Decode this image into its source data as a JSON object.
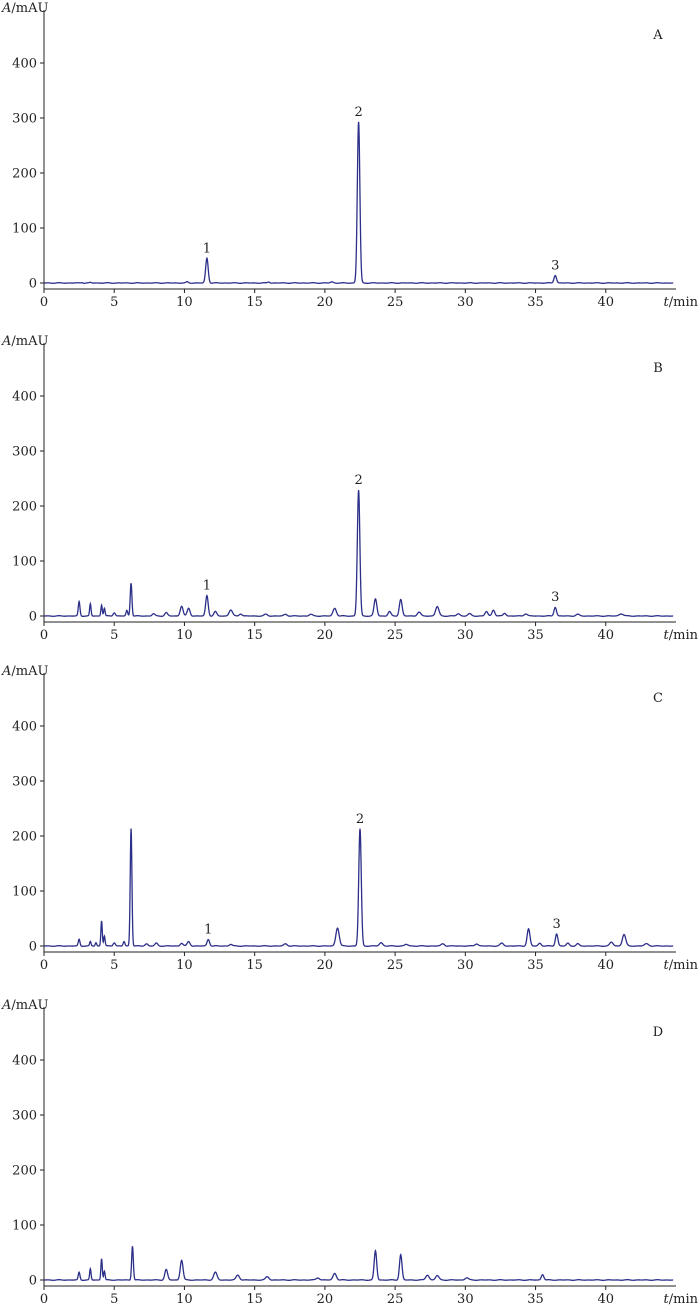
{
  "chart_data": [
    {
      "type": "line",
      "panel_label": "A",
      "ylabel_var": "A",
      "ylabel_unit": "/mAU",
      "xlabel_var": "t",
      "xlabel_unit": "/min",
      "xlim": [
        0,
        45
      ],
      "ylim": [
        -10,
        470
      ],
      "x_ticks": [
        0,
        5,
        10,
        15,
        20,
        25,
        30,
        35,
        40
      ],
      "y_ticks": [
        0,
        100,
        200,
        300,
        400
      ],
      "baseline": 0,
      "peaks": [
        {
          "x": 2.7,
          "y": 1,
          "w": 0.06
        },
        {
          "x": 3.3,
          "y": 1,
          "w": 0.06
        },
        {
          "x": 10.2,
          "y": 2,
          "w": 0.08
        },
        {
          "x": 11.6,
          "y": 45,
          "w": 0.09
        },
        {
          "x": 16.0,
          "y": 2,
          "w": 0.08
        },
        {
          "x": 20.5,
          "y": 2,
          "w": 0.1
        },
        {
          "x": 22.4,
          "y": 293,
          "w": 0.09
        },
        {
          "x": 36.4,
          "y": 14,
          "w": 0.09
        }
      ],
      "labeled_peaks": [
        {
          "label": "1",
          "x": 11.6,
          "y": 45
        },
        {
          "label": "2",
          "x": 22.4,
          "y": 293
        },
        {
          "label": "3",
          "x": 36.4,
          "y": 14
        }
      ]
    },
    {
      "type": "line",
      "panel_label": "B",
      "ylabel_var": "A",
      "ylabel_unit": "/mAU",
      "xlabel_var": "t",
      "xlabel_unit": "/min",
      "xlim": [
        0,
        45
      ],
      "ylim": [
        -10,
        470
      ],
      "x_ticks": [
        0,
        5,
        10,
        15,
        20,
        25,
        30,
        35,
        40
      ],
      "y_ticks": [
        0,
        100,
        200,
        300,
        400
      ],
      "baseline": 0,
      "peaks": [
        {
          "x": 2.5,
          "y": 26,
          "w": 0.06
        },
        {
          "x": 3.3,
          "y": 22,
          "w": 0.05
        },
        {
          "x": 4.1,
          "y": 20,
          "w": 0.05
        },
        {
          "x": 4.3,
          "y": 14,
          "w": 0.05
        },
        {
          "x": 5.0,
          "y": 6,
          "w": 0.08
        },
        {
          "x": 5.9,
          "y": 10,
          "w": 0.06
        },
        {
          "x": 6.2,
          "y": 60,
          "w": 0.06
        },
        {
          "x": 7.8,
          "y": 4,
          "w": 0.1
        },
        {
          "x": 8.7,
          "y": 6,
          "w": 0.1
        },
        {
          "x": 9.8,
          "y": 18,
          "w": 0.1
        },
        {
          "x": 10.3,
          "y": 14,
          "w": 0.1
        },
        {
          "x": 11.6,
          "y": 37,
          "w": 0.09
        },
        {
          "x": 12.2,
          "y": 8,
          "w": 0.1
        },
        {
          "x": 13.3,
          "y": 11,
          "w": 0.12
        },
        {
          "x": 14.0,
          "y": 4,
          "w": 0.1
        },
        {
          "x": 15.8,
          "y": 3,
          "w": 0.12
        },
        {
          "x": 17.2,
          "y": 3,
          "w": 0.12
        },
        {
          "x": 19.0,
          "y": 3,
          "w": 0.12
        },
        {
          "x": 20.7,
          "y": 14,
          "w": 0.12
        },
        {
          "x": 22.4,
          "y": 229,
          "w": 0.09
        },
        {
          "x": 23.6,
          "y": 31,
          "w": 0.1
        },
        {
          "x": 24.6,
          "y": 8,
          "w": 0.1
        },
        {
          "x": 25.4,
          "y": 30,
          "w": 0.1
        },
        {
          "x": 26.7,
          "y": 7,
          "w": 0.12
        },
        {
          "x": 28.0,
          "y": 17,
          "w": 0.12
        },
        {
          "x": 29.5,
          "y": 4,
          "w": 0.12
        },
        {
          "x": 30.3,
          "y": 4,
          "w": 0.12
        },
        {
          "x": 31.5,
          "y": 8,
          "w": 0.1
        },
        {
          "x": 32.0,
          "y": 11,
          "w": 0.1
        },
        {
          "x": 32.8,
          "y": 5,
          "w": 0.1
        },
        {
          "x": 34.3,
          "y": 4,
          "w": 0.12
        },
        {
          "x": 36.4,
          "y": 16,
          "w": 0.09
        },
        {
          "x": 38.0,
          "y": 3,
          "w": 0.12
        },
        {
          "x": 41.1,
          "y": 4,
          "w": 0.15
        }
      ],
      "labeled_peaks": [
        {
          "label": "1",
          "x": 11.6,
          "y": 37
        },
        {
          "label": "2",
          "x": 22.4,
          "y": 229
        },
        {
          "label": "3",
          "x": 36.4,
          "y": 16
        }
      ]
    },
    {
      "type": "line",
      "panel_label": "C",
      "ylabel_var": "A",
      "ylabel_unit": "/mAU",
      "xlabel_var": "t",
      "xlabel_unit": "/min",
      "xlim": [
        0,
        45
      ],
      "ylim": [
        -10,
        470
      ],
      "x_ticks": [
        0,
        5,
        10,
        15,
        20,
        25,
        30,
        35,
        40
      ],
      "y_ticks": [
        0,
        100,
        200,
        300,
        400
      ],
      "baseline": 0,
      "peaks": [
        {
          "x": 2.5,
          "y": 12,
          "w": 0.06
        },
        {
          "x": 3.3,
          "y": 8,
          "w": 0.05
        },
        {
          "x": 3.7,
          "y": 6,
          "w": 0.05
        },
        {
          "x": 4.1,
          "y": 46,
          "w": 0.05
        },
        {
          "x": 4.3,
          "y": 18,
          "w": 0.05
        },
        {
          "x": 5.0,
          "y": 6,
          "w": 0.08
        },
        {
          "x": 5.7,
          "y": 8,
          "w": 0.06
        },
        {
          "x": 6.2,
          "y": 214,
          "w": 0.06
        },
        {
          "x": 7.3,
          "y": 4,
          "w": 0.1
        },
        {
          "x": 8.0,
          "y": 5,
          "w": 0.1
        },
        {
          "x": 9.8,
          "y": 5,
          "w": 0.1
        },
        {
          "x": 10.3,
          "y": 8,
          "w": 0.1
        },
        {
          "x": 11.7,
          "y": 12,
          "w": 0.09
        },
        {
          "x": 13.3,
          "y": 3,
          "w": 0.1
        },
        {
          "x": 17.2,
          "y": 4,
          "w": 0.12
        },
        {
          "x": 20.9,
          "y": 33,
          "w": 0.12
        },
        {
          "x": 22.5,
          "y": 213,
          "w": 0.09
        },
        {
          "x": 24.0,
          "y": 6,
          "w": 0.12
        },
        {
          "x": 25.8,
          "y": 3,
          "w": 0.12
        },
        {
          "x": 28.4,
          "y": 4,
          "w": 0.12
        },
        {
          "x": 30.8,
          "y": 4,
          "w": 0.12
        },
        {
          "x": 32.6,
          "y": 5,
          "w": 0.12
        },
        {
          "x": 34.5,
          "y": 31,
          "w": 0.1
        },
        {
          "x": 35.3,
          "y": 5,
          "w": 0.1
        },
        {
          "x": 36.5,
          "y": 22,
          "w": 0.09
        },
        {
          "x": 37.3,
          "y": 5,
          "w": 0.1
        },
        {
          "x": 38.0,
          "y": 4,
          "w": 0.1
        },
        {
          "x": 40.4,
          "y": 7,
          "w": 0.12
        },
        {
          "x": 41.3,
          "y": 21,
          "w": 0.12
        },
        {
          "x": 42.9,
          "y": 4,
          "w": 0.15
        }
      ],
      "labeled_peaks": [
        {
          "label": "1",
          "x": 11.7,
          "y": 12
        },
        {
          "label": "2",
          "x": 22.5,
          "y": 213
        },
        {
          "label": "3",
          "x": 36.5,
          "y": 22
        }
      ]
    },
    {
      "type": "line",
      "panel_label": "D",
      "ylabel_var": "A",
      "ylabel_unit": "/mAU",
      "xlabel_var": "t",
      "xlabel_unit": "/min",
      "xlim": [
        0,
        45
      ],
      "ylim": [
        -10,
        470
      ],
      "x_ticks": [
        0,
        5,
        10,
        15,
        20,
        25,
        30,
        35,
        40
      ],
      "y_ticks": [
        0,
        100,
        200,
        300,
        400
      ],
      "baseline": 0,
      "peaks": [
        {
          "x": 2.5,
          "y": 14,
          "w": 0.06
        },
        {
          "x": 3.3,
          "y": 20,
          "w": 0.05
        },
        {
          "x": 4.1,
          "y": 39,
          "w": 0.05
        },
        {
          "x": 4.3,
          "y": 16,
          "w": 0.05
        },
        {
          "x": 6.3,
          "y": 62,
          "w": 0.06
        },
        {
          "x": 8.7,
          "y": 19,
          "w": 0.1
        },
        {
          "x": 9.8,
          "y": 36,
          "w": 0.1
        },
        {
          "x": 12.2,
          "y": 14,
          "w": 0.12
        },
        {
          "x": 13.8,
          "y": 9,
          "w": 0.12
        },
        {
          "x": 15.9,
          "y": 6,
          "w": 0.12
        },
        {
          "x": 19.5,
          "y": 4,
          "w": 0.12
        },
        {
          "x": 20.7,
          "y": 12,
          "w": 0.12
        },
        {
          "x": 23.6,
          "y": 53,
          "w": 0.09
        },
        {
          "x": 25.4,
          "y": 46,
          "w": 0.09
        },
        {
          "x": 27.3,
          "y": 9,
          "w": 0.12
        },
        {
          "x": 28.0,
          "y": 8,
          "w": 0.12
        },
        {
          "x": 30.1,
          "y": 4,
          "w": 0.12
        },
        {
          "x": 35.5,
          "y": 10,
          "w": 0.09
        }
      ],
      "labeled_peaks": []
    }
  ]
}
